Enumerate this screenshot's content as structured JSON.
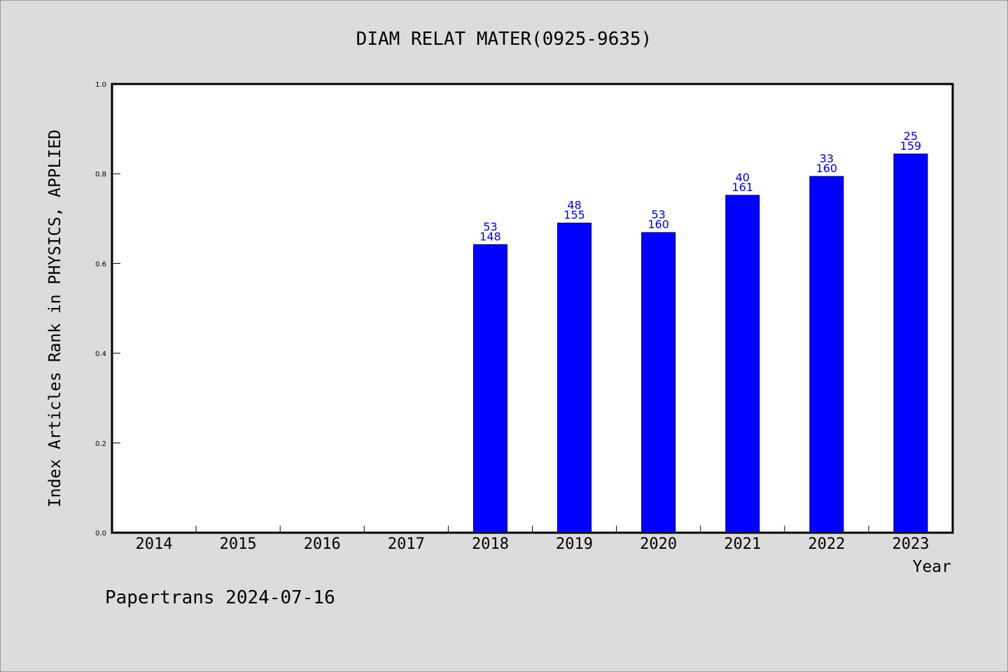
{
  "title": "DIAM RELAT MATER(0925-9635)",
  "footer": "Papertrans 2024-07-16",
  "colors": {
    "bar": "#0000ff",
    "label": "#0000cc",
    "background": "#dcdcdc",
    "plot": "#ffffff"
  },
  "chart_data": {
    "type": "bar",
    "xlabel": "Year",
    "ylabel": "Index Articles Rank in PHYSICS, APPLIED",
    "ylim": [
      0,
      1.0
    ],
    "yticks": [
      "0.0",
      "0.2",
      "0.4",
      "0.6",
      "0.8",
      "1.0"
    ],
    "categories": [
      "2014",
      "2015",
      "2016",
      "2017",
      "2018",
      "2019",
      "2020",
      "2021",
      "2022",
      "2023"
    ],
    "values": [
      null,
      null,
      null,
      null,
      0.642,
      0.69,
      0.669,
      0.752,
      0.794,
      0.844
    ],
    "labels": [
      null,
      null,
      null,
      null,
      [
        "53",
        "148"
      ],
      [
        "48",
        "155"
      ],
      [
        "53",
        "160"
      ],
      [
        "40",
        "161"
      ],
      [
        "33",
        "160"
      ],
      [
        "25",
        "159"
      ]
    ],
    "grid": false,
    "legend": "none"
  }
}
